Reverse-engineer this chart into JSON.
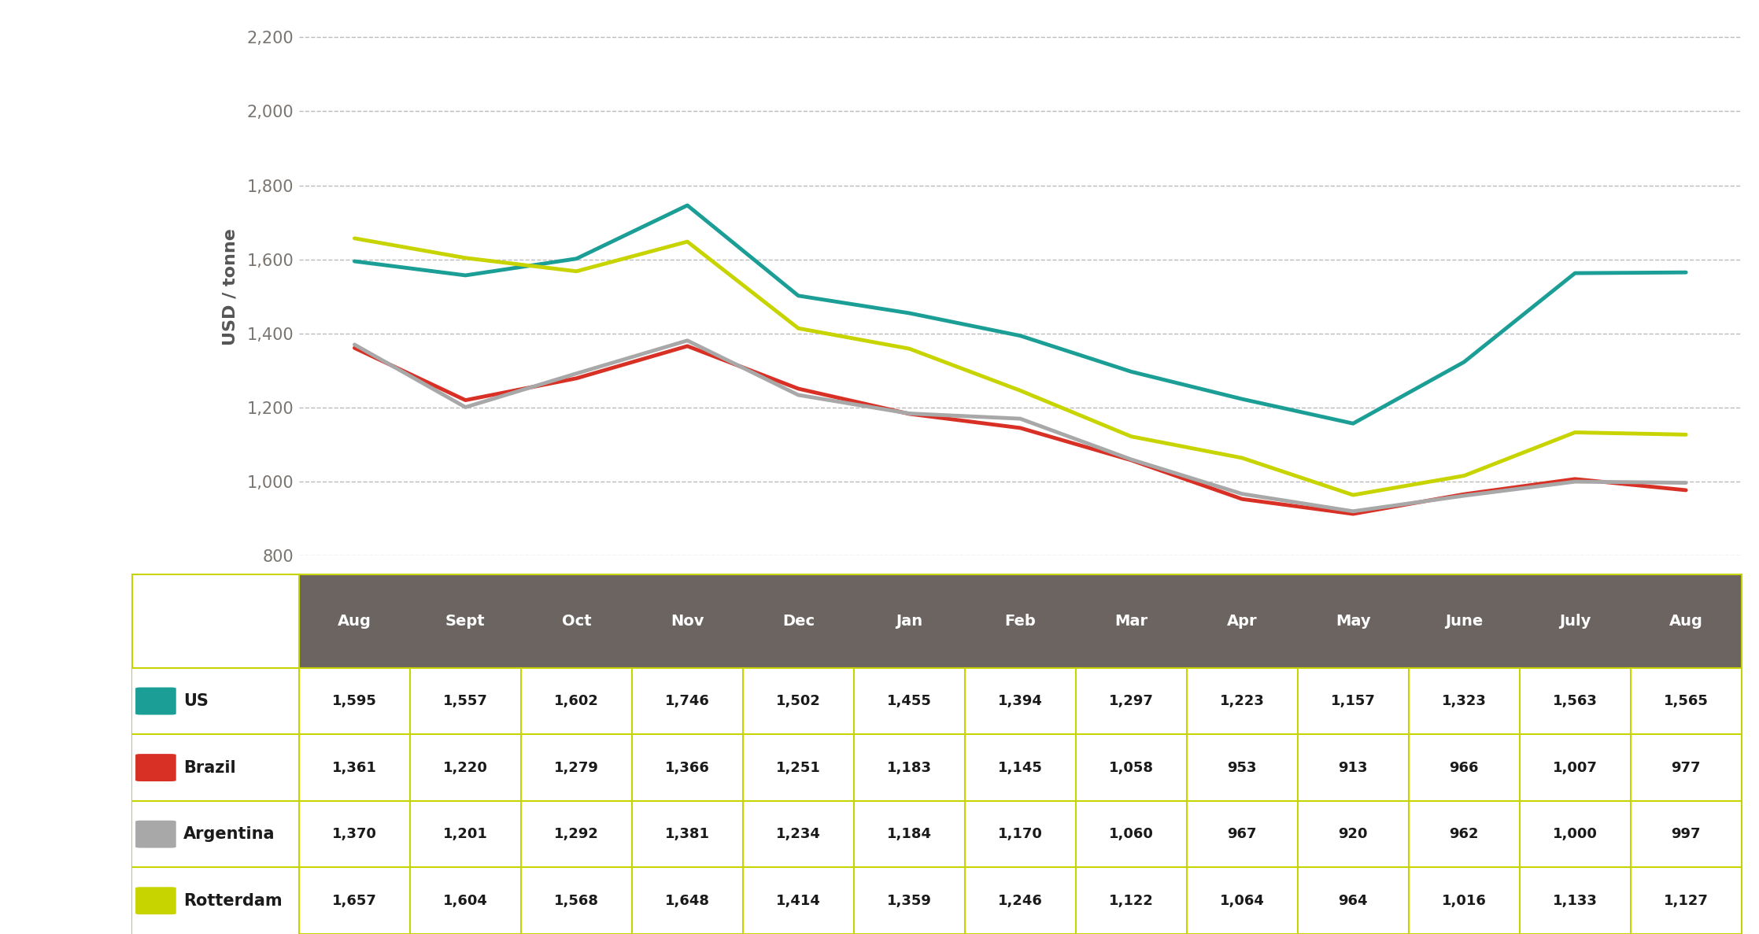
{
  "months": [
    "Aug",
    "Sept",
    "Oct",
    "Nov",
    "Dec",
    "Jan",
    "Feb",
    "Mar",
    "Apr",
    "May",
    "June",
    "July",
    "Aug"
  ],
  "series": {
    "US": [
      1595,
      1557,
      1602,
      1746,
      1502,
      1455,
      1394,
      1297,
      1223,
      1157,
      1323,
      1563,
      1565
    ],
    "Brazil": [
      1361,
      1220,
      1279,
      1366,
      1251,
      1183,
      1145,
      1058,
      953,
      913,
      966,
      1007,
      977
    ],
    "Argentina": [
      1370,
      1201,
      1292,
      1381,
      1234,
      1184,
      1170,
      1060,
      967,
      920,
      962,
      1000,
      997
    ],
    "Rotterdam": [
      1657,
      1604,
      1568,
      1648,
      1414,
      1359,
      1246,
      1122,
      1064,
      964,
      1016,
      1133,
      1127
    ]
  },
  "colors": {
    "US": "#1a9e96",
    "Brazil": "#d93025",
    "Argentina": "#a8a8a8",
    "Rotterdam": "#c8d400"
  },
  "ylabel": "USD / tonne",
  "ylim": [
    800,
    2250
  ],
  "yticks": [
    800,
    1000,
    1200,
    1400,
    1600,
    1800,
    2000,
    2200
  ],
  "table_header_bg": "#6b6460",
  "line_width": 3.5,
  "background_color": "#ffffff",
  "plot_bg_color": "#ffffff",
  "grid_color": "#bbbbbb",
  "grid_style": "--",
  "table_border_color": "#c8d400",
  "table_grid_color": "#c8d400",
  "table_text_color": "#1a1a1a",
  "header_text_color": "#ffffff",
  "ytick_color": "#7a7570",
  "ylabel_color": "#555555"
}
